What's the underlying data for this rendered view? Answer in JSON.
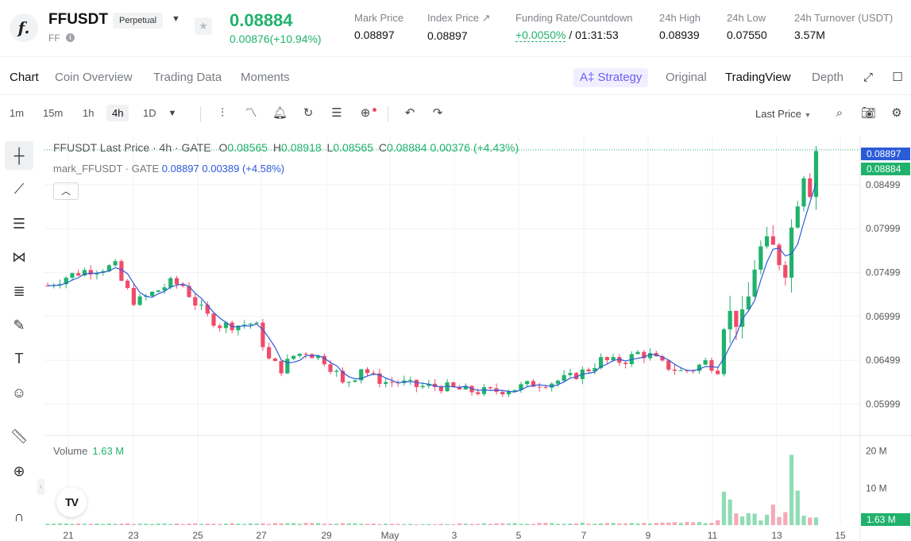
{
  "header": {
    "logo_letter": "f.",
    "symbol": "FFUSDT",
    "badge": "Perpetual",
    "sub_symbol": "FF",
    "last_price": "0.08884",
    "change": "0.00876(+10.94%)",
    "stats": [
      {
        "label": "Mark Price",
        "value": "0.08897"
      },
      {
        "label": "Index Price ↗",
        "value": "0.08897"
      },
      {
        "label": "Funding Rate/Countdown",
        "value_green": "+0.0050%",
        "value_rest": "/ 01:31:53"
      },
      {
        "label": "24h High",
        "value": "0.08939"
      },
      {
        "label": "24h Low",
        "value": "0.07550"
      },
      {
        "label": "24h Turnover (USDT)",
        "value": "3.57M"
      }
    ]
  },
  "tabs": {
    "left": [
      "Chart",
      "Coin Overview",
      "Trading Data",
      "Moments"
    ],
    "strategy": "Strategy",
    "right": [
      "Original",
      "TradingView",
      "Depth"
    ]
  },
  "toolbar": {
    "intervals": [
      "1m",
      "15m",
      "1h",
      "4h",
      "1D"
    ],
    "active_interval": "4h",
    "price_select": "Last Price"
  },
  "legend": {
    "title": "FFUSDT Last Price · 4h · GATE",
    "o_label": "O",
    "o": "0.08565",
    "h_label": "H",
    "h": "0.08918",
    "l_label": "L",
    "l": "0.08565",
    "c_label": "C",
    "c": "0.08884",
    "delta": "0.00376 (+4.43%)",
    "mark_name": "mark_FFUSDT · GATE",
    "mark_value": "0.08897 0.00389 (+4.58%)",
    "volume_label": "Volume",
    "volume_value": "1.63 M",
    "tv_logo": "TV"
  },
  "chart_data": {
    "type": "candlestick",
    "price_axis_ticks": [
      "0.08499",
      "0.07999",
      "0.07499",
      "0.06999",
      "0.06499",
      "0.05999"
    ],
    "price_ylim": [
      0.0565,
      0.0905
    ],
    "price_tags": {
      "mark": "0.08897",
      "last": "0.08884"
    },
    "volume_axis_ticks": [
      "20 M",
      "10 M"
    ],
    "volume_tag": "1.63 M",
    "x_ticks": [
      "21",
      "23",
      "25",
      "27",
      "29",
      "May",
      "3",
      "5",
      "7",
      "9",
      "11",
      "13",
      "15"
    ],
    "colors": {
      "up": "#20b26c",
      "down": "#ef4b6a",
      "ma": "#2b5bd7",
      "mark_tag": "#2b5bd7",
      "grid": "#f0f1f3"
    },
    "price_path": [
      [
        0,
        0.0735
      ],
      [
        3,
        0.0745
      ],
      [
        6,
        0.0752
      ],
      [
        9,
        0.0755
      ],
      [
        11,
        0.0757
      ],
      [
        12,
        0.074
      ],
      [
        14,
        0.0718
      ],
      [
        15,
        0.0718
      ],
      [
        18,
        0.073
      ],
      [
        20,
        0.0738
      ],
      [
        22,
        0.0735
      ],
      [
        24,
        0.0715
      ],
      [
        26,
        0.07
      ],
      [
        28,
        0.069
      ],
      [
        31,
        0.069
      ],
      [
        33,
        0.0692
      ],
      [
        34,
        0.0688
      ],
      [
        36,
        0.065
      ],
      [
        38,
        0.064
      ],
      [
        40,
        0.0655
      ],
      [
        42,
        0.066
      ],
      [
        45,
        0.065
      ],
      [
        47,
        0.0635
      ],
      [
        48,
        0.0622
      ],
      [
        50,
        0.0632
      ],
      [
        51,
        0.0642
      ],
      [
        53,
        0.063
      ],
      [
        55,
        0.0625
      ],
      [
        57,
        0.0625
      ],
      [
        60,
        0.062
      ],
      [
        64,
        0.062
      ],
      [
        68,
        0.0615
      ],
      [
        72,
        0.0614
      ],
      [
        76,
        0.0618
      ],
      [
        79,
        0.0623
      ],
      [
        82,
        0.0625
      ],
      [
        85,
        0.063
      ],
      [
        88,
        0.064
      ],
      [
        90,
        0.065
      ],
      [
        92,
        0.0648
      ],
      [
        94,
        0.065
      ],
      [
        96,
        0.0658
      ],
      [
        98,
        0.0655
      ],
      [
        100,
        0.0645
      ],
      [
        103,
        0.0637
      ],
      [
        105,
        0.064
      ],
      [
        107,
        0.0648
      ],
      [
        109,
        0.064
      ],
      [
        110,
        0.069
      ],
      [
        111,
        0.07
      ],
      [
        112,
        0.07
      ],
      [
        113,
        0.069
      ],
      [
        114,
        0.072
      ],
      [
        115,
        0.076
      ],
      [
        116,
        0.0775
      ],
      [
        117,
        0.0775
      ],
      [
        118,
        0.0775
      ],
      [
        120,
        0.076
      ],
      [
        121,
        0.08
      ],
      [
        122,
        0.084
      ],
      [
        123,
        0.087
      ],
      [
        124,
        0.085
      ],
      [
        125,
        0.08884
      ]
    ],
    "volume_path": [
      [
        0,
        0.4
      ],
      [
        20,
        0.4
      ],
      [
        40,
        0.5
      ],
      [
        60,
        0.3
      ],
      [
        80,
        0.5
      ],
      [
        100,
        0.6
      ],
      [
        108,
        0.8
      ],
      [
        109,
        1.5
      ],
      [
        110,
        9.0
      ],
      [
        111,
        6.0
      ],
      [
        112,
        3.0
      ],
      [
        113,
        2.0
      ],
      [
        114,
        2.5
      ],
      [
        115,
        2.5
      ],
      [
        116,
        1.5
      ],
      [
        117,
        3.5
      ],
      [
        118,
        5.0
      ],
      [
        119,
        2.5
      ],
      [
        120,
        3.0
      ],
      [
        121,
        21.0
      ],
      [
        122,
        10.0
      ],
      [
        123,
        3.0
      ],
      [
        125,
        1.63
      ]
    ]
  }
}
